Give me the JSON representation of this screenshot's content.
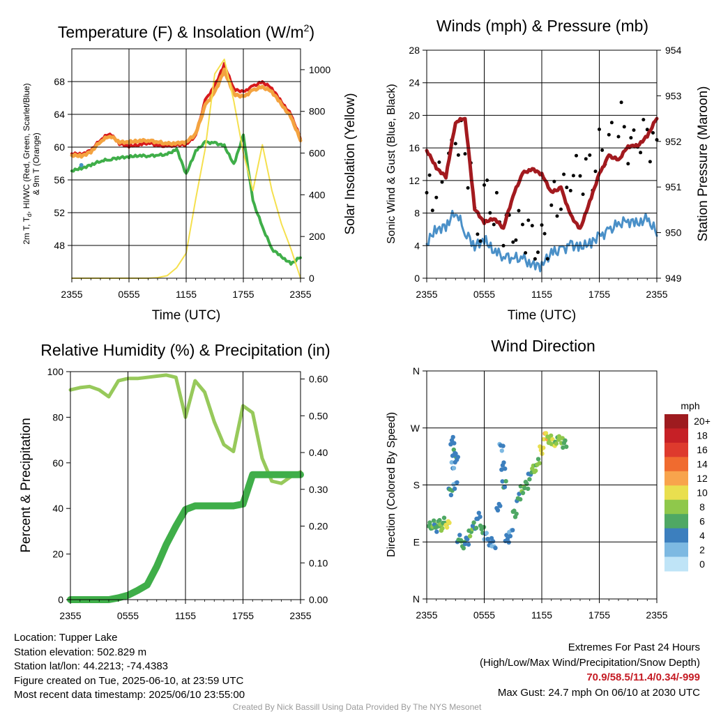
{
  "chart_data": [
    {
      "type": "line",
      "title": "Temperature (F) & Insolation (W/m²)",
      "xlabel": "Time (UTC)",
      "ylabel": "2m T, Td, HI/WC (Red, Green, Scarlet/Blue) & 9m T (Orange)",
      "ylabel_line1": "2m T, T",
      "ylabel_sub": "d",
      "ylabel_line1b": ", HI/WC (Red, Green, Scarlet/Blue)",
      "ylabel_line2": "& 9m T (Orange)",
      "y2label": "Solar Insolation (Yellow)",
      "x_ticks": [
        "2355",
        "0555",
        "1155",
        "1755",
        "2355"
      ],
      "ylim": [
        44,
        72
      ],
      "y_ticks": [
        "48",
        "52",
        "56",
        "60",
        "64",
        "68"
      ],
      "y2lim": [
        0,
        1100
      ],
      "y2_ticks": [
        "0",
        "200",
        "400",
        "600",
        "800",
        "1000"
      ],
      "x_hours": [
        0,
        1,
        2,
        3,
        4,
        5,
        6,
        7,
        8,
        9,
        10,
        11,
        12,
        13,
        14,
        15,
        16,
        17,
        18,
        19,
        20,
        21,
        22,
        23,
        24
      ],
      "series": [
        {
          "key": "temp_2m",
          "color": "#d7191c",
          "values": [
            59.2,
            59.0,
            59.5,
            60.8,
            61.6,
            60.3,
            60.0,
            60.2,
            60.5,
            60.2,
            60.1,
            60.3,
            60.4,
            61.5,
            65.8,
            67.6,
            70.2,
            67.2,
            66.8,
            67.5,
            68.0,
            67.2,
            65.5,
            63.9,
            61.0
          ]
        },
        {
          "key": "temp_9m",
          "color": "#f4a340",
          "values": [
            59.0,
            58.8,
            59.3,
            60.6,
            61.3,
            60.5,
            60.5,
            60.7,
            60.8,
            60.6,
            60.4,
            60.5,
            60.7,
            61.7,
            65.2,
            66.8,
            69.5,
            66.6,
            66.2,
            67.0,
            67.4,
            66.8,
            65.2,
            63.6,
            60.8
          ]
        },
        {
          "key": "dewpoint",
          "color": "#3fae49",
          "values": [
            57.1,
            57.3,
            57.7,
            58.2,
            58.4,
            58.6,
            58.7,
            58.9,
            58.9,
            59.0,
            59.1,
            59.8,
            56.8,
            59.6,
            60.7,
            60.6,
            60.3,
            58.0,
            61.5,
            53.5,
            50.3,
            47.6,
            46.6,
            45.7,
            46.5
          ]
        },
        {
          "key": "wind_chill",
          "color": "#4393c3",
          "values": [
            null,
            57.8,
            null,
            null,
            null,
            null,
            null,
            null,
            null,
            null,
            null,
            null,
            null,
            null,
            null,
            null,
            null,
            null,
            null,
            null,
            null,
            null,
            null,
            null,
            null
          ]
        },
        {
          "key": "solar",
          "axis": "y2",
          "color": "#f5e04e",
          "values": [
            0,
            0,
            0,
            0,
            0,
            0,
            0,
            0,
            0,
            3,
            12,
            50,
            120,
            380,
            620,
            980,
            1050,
            850,
            600,
            420,
            640,
            420,
            260,
            140,
            0
          ]
        }
      ]
    },
    {
      "type": "line",
      "title": "Winds (mph) & Pressure (mb)",
      "xlabel": "Time (UTC)",
      "ylabel": "Sonic Wind & Gust (Blue, Black)",
      "y2label": "Station Pressure (Maroon)",
      "x_ticks": [
        "2355",
        "0555",
        "1155",
        "1755",
        "2355"
      ],
      "ylim": [
        0,
        28
      ],
      "y_ticks": [
        "0",
        "4",
        "8",
        "12",
        "16",
        "20",
        "24",
        "28"
      ],
      "y2lim": [
        949,
        954
      ],
      "y2_ticks": [
        "949",
        "950",
        "951",
        "952",
        "953",
        "954"
      ],
      "x_hours": [
        0,
        1,
        2,
        3,
        4,
        5,
        6,
        7,
        8,
        9,
        10,
        11,
        12,
        13,
        14,
        15,
        16,
        17,
        18,
        19,
        20,
        21,
        22,
        23,
        24
      ],
      "series": [
        {
          "key": "wind",
          "color": "#4a90c8",
          "values": [
            4.2,
            5.5,
            5.8,
            7.8,
            5.2,
            3.4,
            4.2,
            3.1,
            2.6,
            2.4,
            2.4,
            1.8,
            2.0,
            3.6,
            3.9,
            4.6,
            4.4,
            4.8,
            5.5,
            6.1,
            6.9,
            7.2,
            6.6,
            7.0,
            5.2
          ]
        },
        {
          "key": "gust",
          "color": "#000000",
          "marker": "dot",
          "values": [
            10.5,
            12.0,
            15.0,
            17.0,
            13.5,
            6.2,
            10.5,
            8.0,
            6.5,
            5.8,
            5.6,
            4.0,
            4.8,
            9.5,
            10.8,
            12.8,
            12.5,
            13.0,
            16.0,
            17.2,
            19.2,
            16.5,
            17.0,
            16.8,
            14.5
          ]
        },
        {
          "key": "pressure",
          "axis": "y2",
          "color": "#a31a1f",
          "values": [
            951.8,
            951.4,
            951.2,
            952.4,
            952.5,
            950.5,
            950.2,
            950.3,
            950.1,
            950.8,
            951.3,
            951.4,
            951.3,
            950.9,
            951.0,
            950.4,
            950.1,
            950.7,
            951.3,
            951.7,
            951.6,
            951.9,
            951.9,
            952.1,
            952.5
          ]
        }
      ]
    },
    {
      "type": "line",
      "title": "Relative Humidity (%) & Precipitation (in)",
      "xlabel": "",
      "ylabel": "Percent & Precipitation",
      "x_ticks": [
        "2355",
        "0555",
        "1155",
        "1755",
        "2355"
      ],
      "ylim": [
        0,
        100
      ],
      "y_ticks": [
        "0",
        "20",
        "40",
        "60",
        "80",
        "100"
      ],
      "y2lim": [
        0,
        0.62
      ],
      "y2_ticks": [
        "0.00",
        "0.10",
        "0.20",
        "0.30",
        "0.40",
        "0.50",
        "0.60"
      ],
      "x_hours": [
        0,
        1,
        2,
        3,
        4,
        5,
        6,
        7,
        8,
        9,
        10,
        11,
        12,
        13,
        14,
        15,
        16,
        17,
        18,
        19,
        20,
        21,
        22,
        23,
        24
      ],
      "series": [
        {
          "key": "rh",
          "color": "#97c95b",
          "values": [
            92.0,
            93.0,
            93.5,
            92.0,
            89.0,
            96.0,
            97.0,
            97.0,
            97.5,
            98.0,
            98.5,
            97.5,
            80.0,
            96.0,
            91.0,
            78.0,
            68.0,
            65.0,
            85.0,
            82.0,
            62.0,
            52.0,
            51.0,
            54.0,
            56.0
          ]
        },
        {
          "key": "precip",
          "axis": "y2",
          "color": "#3fae49",
          "values": [
            0.0,
            0.0,
            0.0,
            0.0,
            0.0,
            0.005,
            0.012,
            0.025,
            0.04,
            0.09,
            0.15,
            0.2,
            0.245,
            0.255,
            0.255,
            0.255,
            0.255,
            0.255,
            0.26,
            0.34,
            0.34,
            0.34,
            0.34,
            0.34,
            0.34
          ]
        }
      ]
    },
    {
      "type": "scatter",
      "title": "Wind Direction",
      "ylabel": "Direction (Colored By Speed)",
      "x_ticks": [
        "2355",
        "0555",
        "1155",
        "1755",
        "2355"
      ],
      "y_ticks": [
        "N",
        "E",
        "S",
        "W",
        "N"
      ],
      "ylim": [
        0,
        360
      ],
      "colorbar_title": "mph",
      "colorbar_labels": [
        "20+",
        "18",
        "16",
        "14",
        "12",
        "10",
        "8",
        "6",
        "4",
        "2",
        "0"
      ],
      "colorbar_colors": [
        "#9e1b1f",
        "#c62026",
        "#de3a2d",
        "#f06b2f",
        "#f8a44c",
        "#e9df4f",
        "#8fc84b",
        "#4fa864",
        "#3c7fbe",
        "#7db9e2",
        "#bfe4f7"
      ],
      "points": [
        {
          "x": 0.2,
          "y": 115,
          "s": 5
        },
        {
          "x": 0.5,
          "y": 118,
          "s": 6
        },
        {
          "x": 0.8,
          "y": 112,
          "s": 4
        },
        {
          "x": 1.1,
          "y": 120,
          "s": 5
        },
        {
          "x": 1.4,
          "y": 113,
          "s": 7
        },
        {
          "x": 1.7,
          "y": 122,
          "s": 5
        },
        {
          "x": 2.0,
          "y": 118,
          "s": 9
        },
        {
          "x": 2.3,
          "y": 170,
          "s": 4
        },
        {
          "x": 2.5,
          "y": 250,
          "s": 3
        },
        {
          "x": 2.6,
          "y": 210,
          "s": 2
        },
        {
          "x": 2.7,
          "y": 230,
          "s": 4
        },
        {
          "x": 2.8,
          "y": 180,
          "s": 2
        },
        {
          "x": 2.9,
          "y": 225,
          "s": 3
        },
        {
          "x": 3.2,
          "y": 95,
          "s": 4
        },
        {
          "x": 3.6,
          "y": 85,
          "s": 5
        },
        {
          "x": 4.0,
          "y": 92,
          "s": 3
        },
        {
          "x": 4.4,
          "y": 105,
          "s": 6
        },
        {
          "x": 4.8,
          "y": 115,
          "s": 4
        },
        {
          "x": 5.2,
          "y": 130,
          "s": 3
        },
        {
          "x": 5.6,
          "y": 110,
          "s": 5
        },
        {
          "x": 6.0,
          "y": 100,
          "s": 2
        },
        {
          "x": 6.4,
          "y": 90,
          "s": 3
        },
        {
          "x": 6.8,
          "y": 85,
          "s": 2
        },
        {
          "x": 7.3,
          "y": 145,
          "s": 3
        },
        {
          "x": 7.6,
          "y": 240,
          "s": 2
        },
        {
          "x": 7.8,
          "y": 210,
          "s": 3
        },
        {
          "x": 7.9,
          "y": 180,
          "s": 4
        },
        {
          "x": 8.2,
          "y": 95,
          "s": 3
        },
        {
          "x": 8.6,
          "y": 105,
          "s": 2
        },
        {
          "x": 9.0,
          "y": 135,
          "s": 5
        },
        {
          "x": 9.4,
          "y": 160,
          "s": 4
        },
        {
          "x": 9.8,
          "y": 172,
          "s": 6
        },
        {
          "x": 10.2,
          "y": 180,
          "s": 5
        },
        {
          "x": 10.6,
          "y": 195,
          "s": 4
        },
        {
          "x": 11.0,
          "y": 205,
          "s": 7
        },
        {
          "x": 11.4,
          "y": 215,
          "s": 6
        },
        {
          "x": 11.8,
          "y": 235,
          "s": 9
        },
        {
          "x": 12.2,
          "y": 258,
          "s": 10
        },
        {
          "x": 12.6,
          "y": 252,
          "s": 7
        },
        {
          "x": 13.0,
          "y": 246,
          "s": 8
        },
        {
          "x": 13.4,
          "y": 250,
          "s": 6
        },
        {
          "x": 13.8,
          "y": 252,
          "s": 7
        },
        {
          "x": 14.2,
          "y": 245,
          "s": 5
        }
      ]
    }
  ],
  "info": {
    "location": "Location: Tupper Lake",
    "elevation": "Station elevation: 502.829 m",
    "latlon": "Station lat/lon: 44.2213; -74.4383",
    "created": "Figure created on Tue, 2025-06-10, at 23:59 UTC",
    "recent": "Most recent data timestamp: 2025/06/10 23:55:00"
  },
  "extremes": {
    "title": "Extremes For Past 24 Hours",
    "subtitle": "(High/Low/Max Wind/Precipitation/Snow Depth)",
    "values": "70.9/58.5/11.4/0.34/-999",
    "gust": "Max Gust: 24.7 mph On 06/10 at 2030 UTC"
  },
  "credit": "Created By Nick Bassill Using Data Provided By The NYS Mesonet"
}
